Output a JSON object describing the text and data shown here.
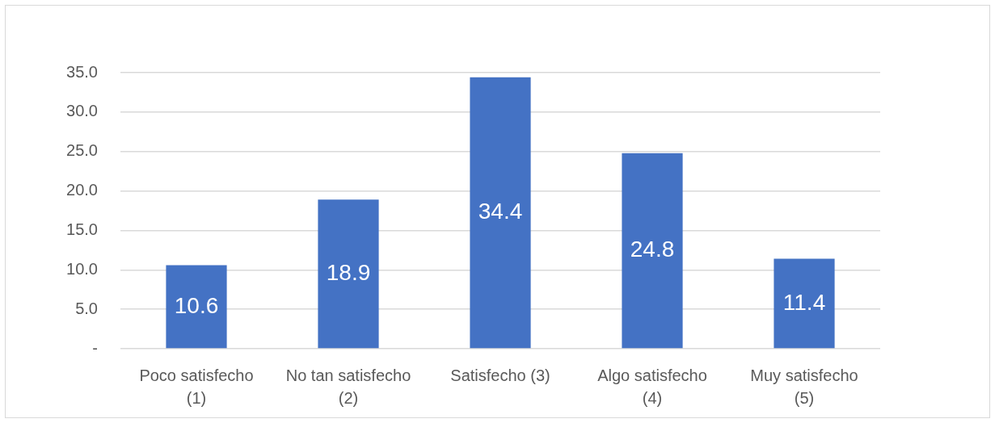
{
  "chart_data": {
    "type": "bar",
    "categories": [
      "Poco satisfecho (1)",
      "No tan satisfecho (2)",
      "Satisfecho (3)",
      "Algo satisfecho (4)",
      "Muy satisfecho (5)"
    ],
    "values": [
      10.6,
      18.9,
      34.4,
      24.8,
      11.4
    ],
    "color": "#4472c4",
    "ylim": [
      0,
      35
    ],
    "yticks": [
      {
        "value": 0,
        "label": "-"
      },
      {
        "value": 5,
        "label": "5.0"
      },
      {
        "value": 10,
        "label": "10.0"
      },
      {
        "value": 15,
        "label": "15.0"
      },
      {
        "value": 20,
        "label": "20.0"
      },
      {
        "value": 25,
        "label": "25.0"
      },
      {
        "value": 30,
        "label": "30.0"
      },
      {
        "value": 35,
        "label": "35.0"
      }
    ],
    "grid": "y",
    "data_labels": true
  }
}
